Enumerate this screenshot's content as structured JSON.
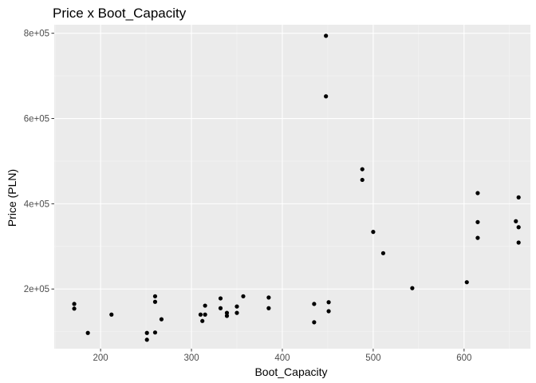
{
  "chart_data": {
    "type": "scatter",
    "title": "Price x Boot_Capacity",
    "xlabel": "Boot_Capacity",
    "ylabel": "Price (PLN)",
    "xlim": [
      149,
      673
    ],
    "ylim": [
      60000,
      820000
    ],
    "x_ticks": [
      200,
      300,
      400,
      500,
      600
    ],
    "y_ticks": [
      200000,
      400000,
      600000,
      800000
    ],
    "x_tick_labels": [
      "200",
      "300",
      "400",
      "500",
      "600"
    ],
    "y_tick_labels": [
      "2e+05",
      "4e+05",
      "6e+05",
      "8e+05"
    ],
    "grid": true,
    "colors": {
      "panel": "#ebebeb",
      "grid_major": "#ffffff",
      "grid_minor": "#f5f5f5",
      "point": "#000000",
      "ticks": "#4d4d4d"
    },
    "points": [
      {
        "x": 171,
        "y": 165000
      },
      {
        "x": 171,
        "y": 154000
      },
      {
        "x": 186,
        "y": 97000
      },
      {
        "x": 212,
        "y": 140000
      },
      {
        "x": 251,
        "y": 97000
      },
      {
        "x": 251,
        "y": 81000
      },
      {
        "x": 260,
        "y": 183000
      },
      {
        "x": 260,
        "y": 170000
      },
      {
        "x": 260,
        "y": 98000
      },
      {
        "x": 267,
        "y": 129000
      },
      {
        "x": 310,
        "y": 140000
      },
      {
        "x": 312,
        "y": 125000
      },
      {
        "x": 315,
        "y": 161000
      },
      {
        "x": 315,
        "y": 140000
      },
      {
        "x": 332,
        "y": 178000
      },
      {
        "x": 332,
        "y": 155000
      },
      {
        "x": 339,
        "y": 144000
      },
      {
        "x": 339,
        "y": 137000
      },
      {
        "x": 350,
        "y": 159000
      },
      {
        "x": 350,
        "y": 144000
      },
      {
        "x": 357,
        "y": 183000
      },
      {
        "x": 385,
        "y": 180000
      },
      {
        "x": 385,
        "y": 155000
      },
      {
        "x": 435,
        "y": 165000
      },
      {
        "x": 435,
        "y": 122000
      },
      {
        "x": 448,
        "y": 794000
      },
      {
        "x": 448,
        "y": 652000
      },
      {
        "x": 451,
        "y": 169000
      },
      {
        "x": 451,
        "y": 148000
      },
      {
        "x": 488,
        "y": 481000
      },
      {
        "x": 488,
        "y": 456000
      },
      {
        "x": 500,
        "y": 334000
      },
      {
        "x": 511,
        "y": 284000
      },
      {
        "x": 543,
        "y": 202000
      },
      {
        "x": 603,
        "y": 216000
      },
      {
        "x": 615,
        "y": 425000
      },
      {
        "x": 615,
        "y": 357000
      },
      {
        "x": 615,
        "y": 320000
      },
      {
        "x": 657,
        "y": 359000
      },
      {
        "x": 660,
        "y": 415000
      },
      {
        "x": 660,
        "y": 345000
      },
      {
        "x": 660,
        "y": 309000
      }
    ]
  }
}
